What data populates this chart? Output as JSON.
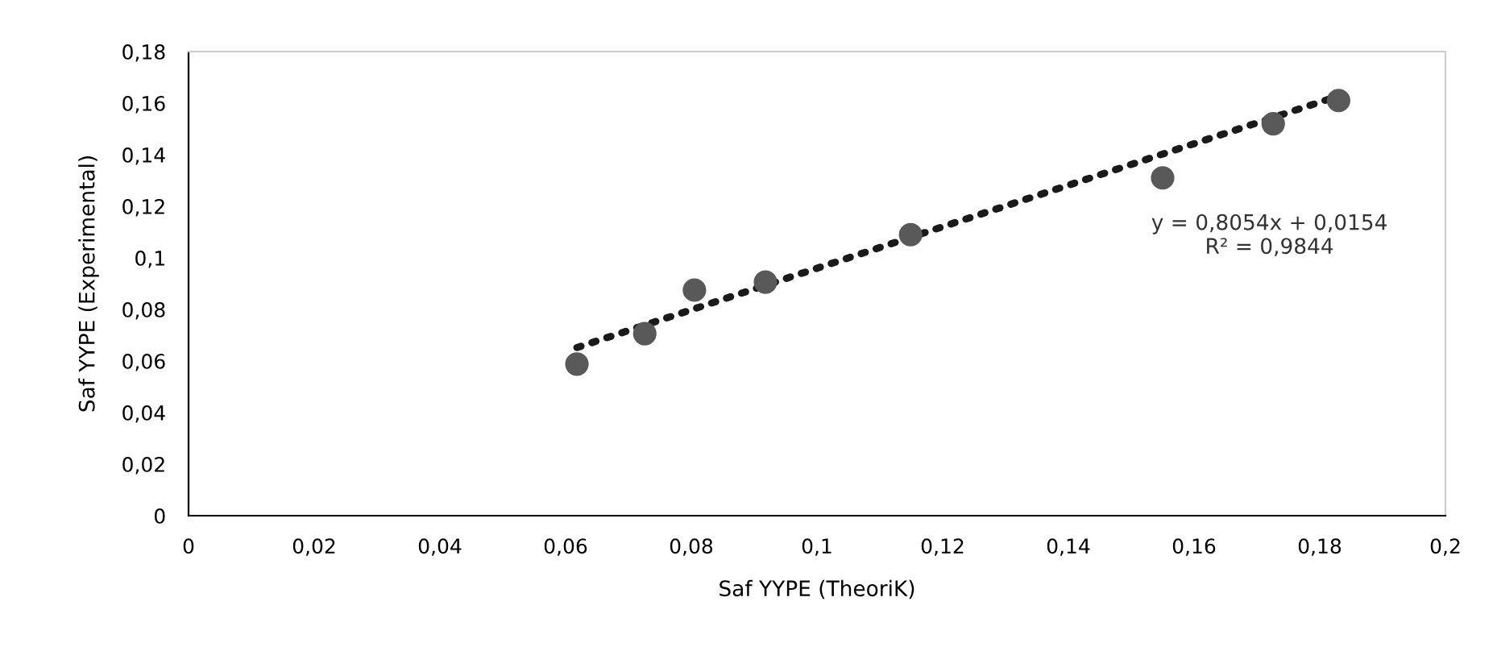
{
  "chart_data": {
    "type": "scatter",
    "xlabel": "Saf YYPE (TheoriK)",
    "ylabel": "Saf YYPE (Experimental)",
    "series": [
      {
        "color": "#595959",
        "marker": "circle",
        "x": [
          0.0618,
          0.0726,
          0.0805,
          0.0918,
          0.1149,
          0.155,
          0.1726,
          0.183
        ],
        "values": [
          0.0588,
          0.0706,
          0.0875,
          0.0906,
          0.109,
          0.131,
          0.152,
          0.161
        ]
      },
      {
        "type": "line",
        "color": "#1a1a1a",
        "line_style": "dotted",
        "marker": "none",
        "x": [
          0.0618,
          0.183
        ],
        "values": [
          0.0652,
          0.1628
        ]
      }
    ],
    "annotations": [
      "y = 0,8054x + 0,0154\nR² = 0,9844"
    ],
    "xlim": [
      0,
      0.2
    ],
    "ylim": [
      0,
      0.18
    ],
    "xticks": [
      {
        "value": 0,
        "label": "0"
      },
      {
        "value": 0.02,
        "label": "0,02"
      },
      {
        "value": 0.04,
        "label": "0,04"
      },
      {
        "value": 0.06,
        "label": "0,06"
      },
      {
        "value": 0.08,
        "label": "0,08"
      },
      {
        "value": 0.1,
        "label": "0,1"
      },
      {
        "value": 0.12,
        "label": "0,12"
      },
      {
        "value": 0.14,
        "label": "0,14"
      },
      {
        "value": 0.16,
        "label": "0,16"
      },
      {
        "value": 0.18,
        "label": "0,18"
      },
      {
        "value": 0.2,
        "label": "0,2"
      }
    ],
    "yticks": [
      {
        "value": 0,
        "label": "0"
      },
      {
        "value": 0.02,
        "label": "0,02"
      },
      {
        "value": 0.04,
        "label": "0,04"
      },
      {
        "value": 0.06,
        "label": "0,06"
      },
      {
        "value": 0.08,
        "label": "0,08"
      },
      {
        "value": 0.1,
        "label": "0,1"
      },
      {
        "value": 0.12,
        "label": "0,12"
      },
      {
        "value": 0.14,
        "label": "0,14"
      },
      {
        "value": 0.16,
        "label": "0,16"
      },
      {
        "value": 0.18,
        "label": "0,18"
      }
    ],
    "grid": false,
    "legend": false
  }
}
